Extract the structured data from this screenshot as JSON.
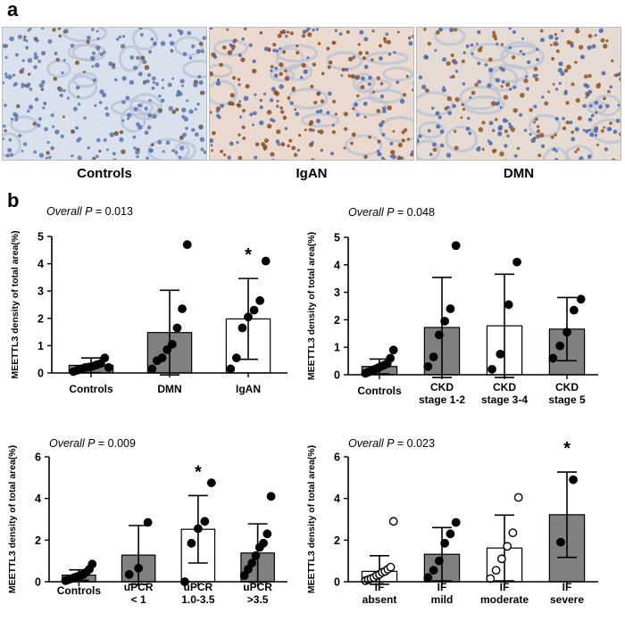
{
  "panel_a": {
    "letter": "a",
    "images": [
      {
        "label": "Controls",
        "tint": "#d9e2ec",
        "cell_color": "#5b74b0",
        "stain_color": "#7a5030",
        "stain_fraction": 0.1
      },
      {
        "label": "IgAN",
        "tint": "#ead9cf",
        "cell_color": "#4a66b0",
        "stain_color": "#8a4a22",
        "stain_fraction": 0.55
      },
      {
        "label": "DMN",
        "tint": "#e6dbd2",
        "cell_color": "#4a66b0",
        "stain_color": "#93531f",
        "stain_fraction": 0.45
      }
    ]
  },
  "panel_b": {
    "letter": "b"
  },
  "chart_data": [
    {
      "type": "bar",
      "annotation_prefix": "Overall ",
      "annotation_p": "P",
      "annotation_value": " = 0.013",
      "ylabel": "MEETTL3 density of total area(%)",
      "ylim": [
        0,
        5
      ],
      "yticks": [
        0,
        1,
        2,
        3,
        4,
        5
      ],
      "categories": [
        [
          "Controls"
        ],
        [
          "DMN"
        ],
        [
          "IgAN"
        ]
      ],
      "values": [
        0.28,
        1.48,
        1.98
      ],
      "sd": [
        0.27,
        1.55,
        1.48
      ],
      "bar_colors": [
        "#808080",
        "#808080",
        "#ffffff"
      ],
      "marker_fill": [
        "#000000",
        "#000000",
        "#000000"
      ],
      "significance": [
        "",
        "",
        "*"
      ],
      "points": [
        [
          0.05,
          0.1,
          0.15,
          0.2,
          0.22,
          0.25,
          0.3,
          0.35,
          0.55,
          0.2
        ],
        [
          0.15,
          0.45,
          0.55,
          0.85,
          1.05,
          1.65,
          2.35,
          4.7
        ],
        [
          0.15,
          0.55,
          1.65,
          2.05,
          2.3,
          2.65,
          4.1
        ]
      ]
    },
    {
      "type": "bar",
      "annotation_prefix": "Overall ",
      "annotation_p": "P",
      "annotation_value": " = 0.048",
      "ylabel": "MEETTL3 density of total area(%)",
      "ylim": [
        0,
        5
      ],
      "yticks": [
        0,
        1,
        2,
        3,
        4,
        5
      ],
      "categories": [
        [
          "Controls"
        ],
        [
          "CKD",
          "stage 1-2"
        ],
        [
          "CKD",
          "stage 3-4"
        ],
        [
          "CKD",
          "stage 5"
        ]
      ],
      "values": [
        0.3,
        1.72,
        1.78,
        1.66
      ],
      "sd": [
        0.27,
        1.82,
        1.88,
        1.15
      ],
      "bar_colors": [
        "#808080",
        "#808080",
        "#ffffff",
        "#808080"
      ],
      "marker_fill": [
        "#000000",
        "#000000",
        "#000000",
        "#000000"
      ],
      "significance": [
        "",
        "",
        "",
        ""
      ],
      "points": [
        [
          0.05,
          0.1,
          0.15,
          0.2,
          0.25,
          0.3,
          0.35,
          0.4,
          0.6,
          0.9
        ],
        [
          0.3,
          0.65,
          1.45,
          1.95,
          2.4,
          4.7
        ],
        [
          0.2,
          0.75,
          2.55,
          4.1
        ],
        [
          0.6,
          1.05,
          1.55,
          2.35,
          2.75
        ]
      ]
    },
    {
      "type": "bar",
      "annotation_prefix": "Overall ",
      "annotation_p": "P",
      "annotation_value": " = 0.009",
      "ylabel": "MEETTL3 density of total area(%)",
      "ylim": [
        0,
        6
      ],
      "yticks": [
        0,
        2,
        4,
        6
      ],
      "categories": [
        [
          "Controls"
        ],
        [
          "uPCR",
          "< 1"
        ],
        [
          "uPCR",
          "1.0-3.5"
        ],
        [
          "uPCR",
          ">3.5"
        ]
      ],
      "values": [
        0.32,
        1.28,
        2.52,
        1.38
      ],
      "sd": [
        0.25,
        1.42,
        1.62,
        1.4
      ],
      "bar_colors": [
        "#808080",
        "#808080",
        "#ffffff",
        "#808080"
      ],
      "marker_fill": [
        "#000000",
        "#000000",
        "#000000",
        "#000000"
      ],
      "significance": [
        "",
        "",
        "*",
        ""
      ],
      "points": [
        [
          0.05,
          0.1,
          0.15,
          0.2,
          0.25,
          0.3,
          0.35,
          0.45,
          0.6,
          0.85
        ],
        [
          0.35,
          0.65,
          2.85
        ],
        [
          0.0,
          1.85,
          2.55,
          2.9,
          4.75
        ],
        [
          0.3,
          0.6,
          0.9,
          1.25,
          1.65,
          1.85,
          2.3,
          4.1
        ]
      ]
    },
    {
      "type": "bar",
      "annotation_prefix": "Overall ",
      "annotation_p": "P",
      "annotation_value": " = 0.023",
      "ylabel": "MEETTL3 density of total area(%)",
      "ylim": [
        0,
        6
      ],
      "yticks": [
        0,
        2,
        4,
        6
      ],
      "categories": [
        [
          "IF",
          "absent"
        ],
        [
          "IF",
          "mild"
        ],
        [
          "IF",
          "moderate"
        ],
        [
          "IF",
          "severe"
        ]
      ],
      "values": [
        0.5,
        1.32,
        1.62,
        3.22
      ],
      "sd": [
        0.75,
        1.28,
        1.58,
        2.05
      ],
      "bar_colors": [
        "#ffffff",
        "#808080",
        "#ffffff",
        "#808080"
      ],
      "marker_fill": [
        "#ffffff",
        "#000000",
        "#ffffff",
        "#000000"
      ],
      "significance": [
        "",
        "",
        "",
        "*"
      ],
      "points": [
        [
          0.05,
          0.1,
          0.15,
          0.2,
          0.3,
          0.35,
          0.45,
          0.5,
          0.6,
          0.7,
          2.9
        ],
        [
          0.2,
          0.55,
          1.0,
          1.85,
          2.3,
          2.85
        ],
        [
          0.15,
          0.55,
          1.1,
          1.7,
          2.35,
          4.05
        ],
        [
          1.9,
          4.9
        ]
      ]
    }
  ]
}
